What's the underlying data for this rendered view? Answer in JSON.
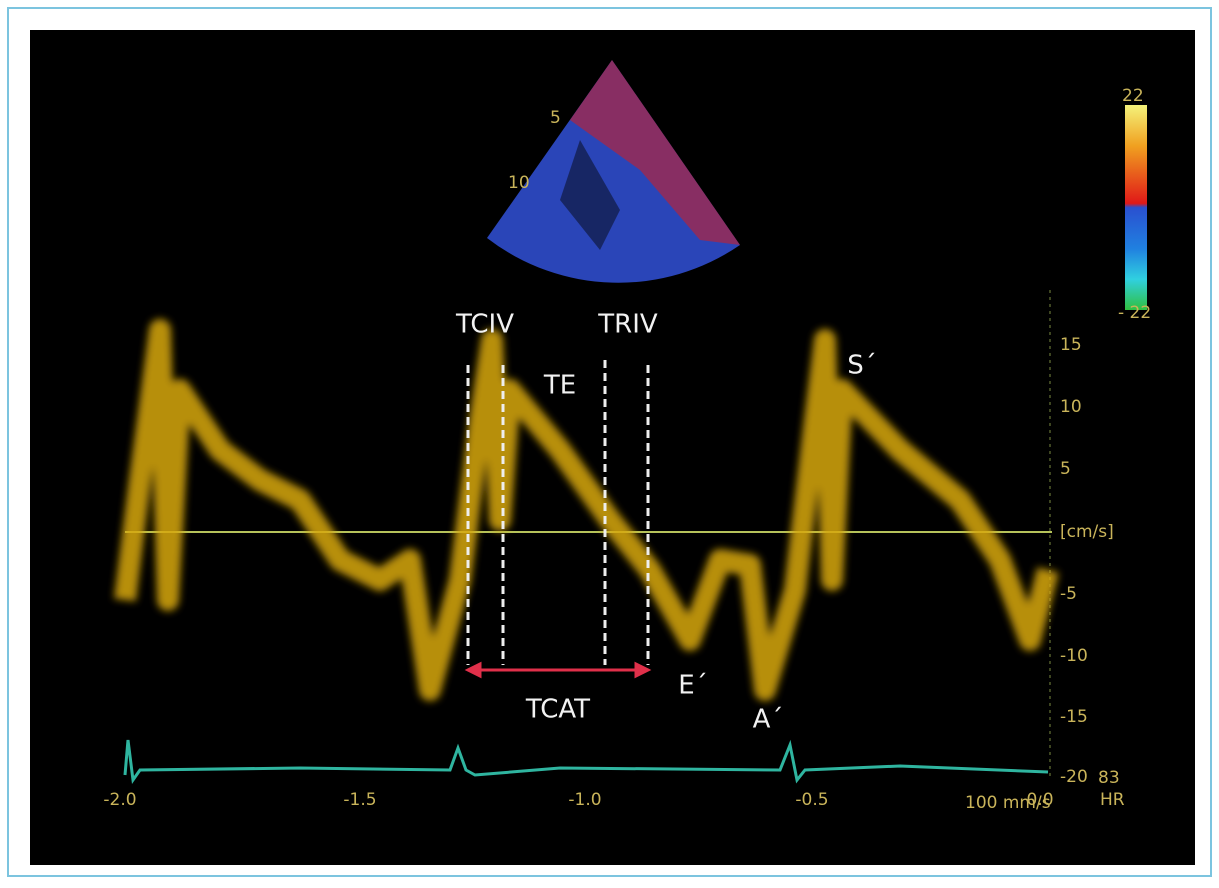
{
  "image": {
    "color_bar": {
      "top": "22",
      "bottom": "- 22"
    },
    "sector_depths": [
      "5",
      "10"
    ],
    "velocity_axis": {
      "labels": [
        "15",
        "10",
        "5",
        "[cm/s]",
        "-5",
        "-10",
        "-15",
        "-20"
      ]
    },
    "time_axis": {
      "labels": [
        "-2.0",
        "-1.5",
        "-1.0",
        "-0.5",
        "0.0"
      ],
      "sweep": "100 mm/s"
    },
    "heart_rate": {
      "value": "83",
      "unit": "HR"
    },
    "annotations": {
      "tciv": "TCIV",
      "triv": "TRIV",
      "te": "TE",
      "s": "S´",
      "e": "E´",
      "a": "A´",
      "tcat": "TCAT"
    }
  }
}
